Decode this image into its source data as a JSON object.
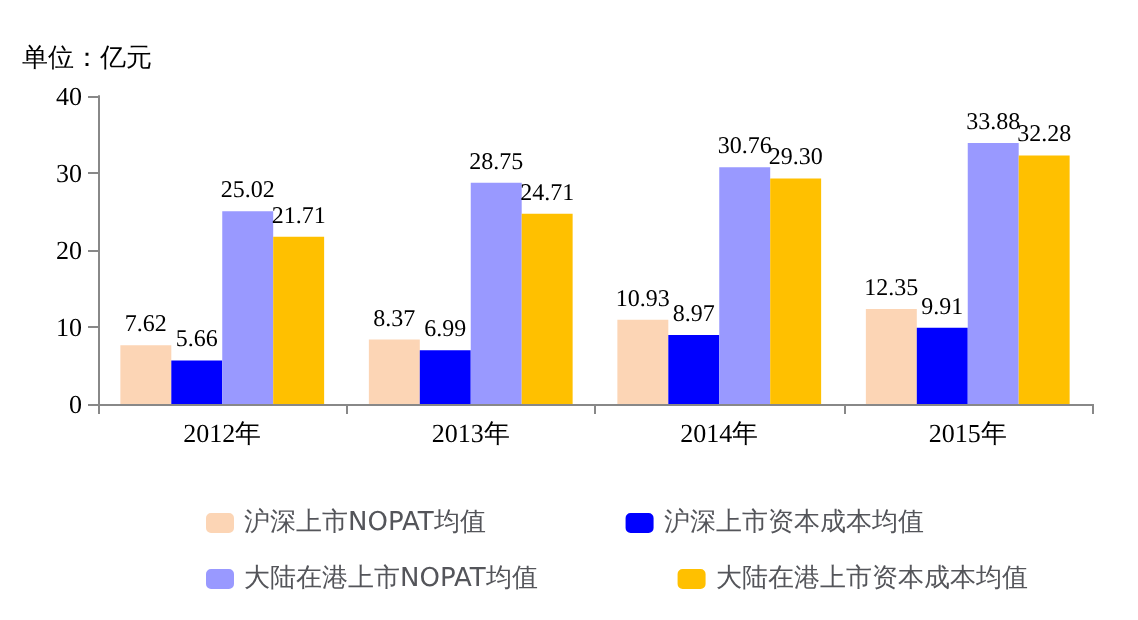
{
  "chart_data": {
    "type": "bar",
    "ylabel": "单位：亿元",
    "categories": [
      "2012年",
      "2013年",
      "2014年",
      "2015年"
    ],
    "series": [
      {
        "name": "沪深上市NOPAT均值",
        "color": "#fcd5b5",
        "values": [
          7.62,
          8.37,
          10.93,
          12.35
        ]
      },
      {
        "name": "沪深上市资本成本均值",
        "color": "#0000ff",
        "values": [
          5.66,
          6.99,
          8.97,
          9.91
        ]
      },
      {
        "name": "大陆在港上市NOPAT均值",
        "color": "#9999ff",
        "values": [
          25.02,
          28.75,
          30.76,
          33.88
        ]
      },
      {
        "name": "大陆在港上市资本成本均值",
        "color": "#ffc000",
        "values": [
          21.71,
          24.71,
          29.3,
          32.28
        ],
        "value_labels": [
          "21.71",
          "24.71",
          "29.30",
          "32.28"
        ]
      }
    ],
    "ylim": [
      0,
      40
    ],
    "yticks": [
      0,
      10,
      20,
      30,
      40
    ],
    "grid": false,
    "legend": "bottom",
    "data_labels": true
  }
}
